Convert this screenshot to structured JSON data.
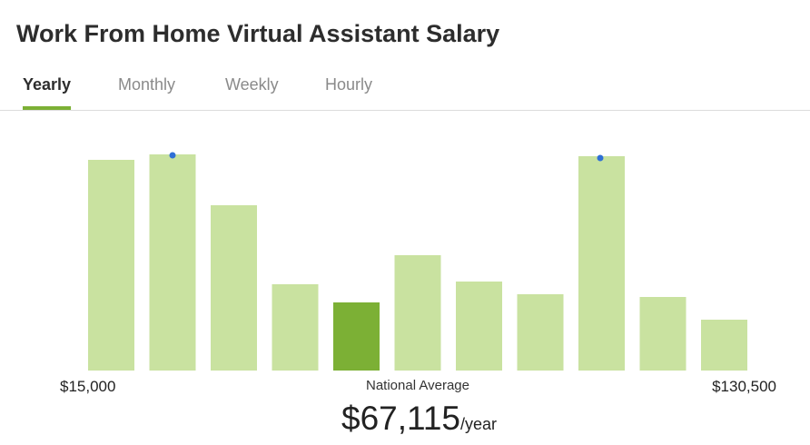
{
  "header": {
    "title": "Work From Home Virtual Assistant Salary"
  },
  "tabs": [
    {
      "label": "Yearly",
      "active": true
    },
    {
      "label": "Monthly",
      "active": false
    },
    {
      "label": "Weekly",
      "active": false
    },
    {
      "label": "Hourly",
      "active": false
    }
  ],
  "chart_data": {
    "type": "bar",
    "values": [
      232,
      238,
      182,
      95,
      75,
      127,
      98,
      84,
      236,
      81,
      56
    ],
    "colors": [
      "#c9e2a0",
      "#c9e2a0",
      "#c9e2a0",
      "#c9e2a0",
      "#7cb035",
      "#c9e2a0",
      "#c9e2a0",
      "#c9e2a0",
      "#c9e2a0",
      "#c9e2a0",
      "#c9e2a0"
    ],
    "range_low": "$15,000",
    "range_high": "$130,500",
    "average_caption": "National Average",
    "average_value": "$67,115",
    "average_unit": "/year"
  }
}
